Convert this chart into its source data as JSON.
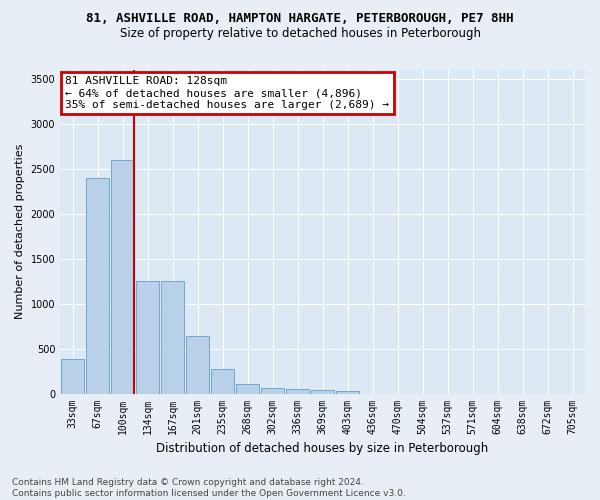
{
  "title_line1": "81, ASHVILLE ROAD, HAMPTON HARGATE, PETERBOROUGH, PE7 8HH",
  "title_line2": "Size of property relative to detached houses in Peterborough",
  "xlabel": "Distribution of detached houses by size in Peterborough",
  "ylabel": "Number of detached properties",
  "categories": [
    "33sqm",
    "67sqm",
    "100sqm",
    "134sqm",
    "167sqm",
    "201sqm",
    "235sqm",
    "268sqm",
    "302sqm",
    "336sqm",
    "369sqm",
    "403sqm",
    "436sqm",
    "470sqm",
    "504sqm",
    "537sqm",
    "571sqm",
    "604sqm",
    "638sqm",
    "672sqm",
    "705sqm"
  ],
  "values": [
    390,
    2400,
    2600,
    1250,
    1250,
    640,
    270,
    110,
    60,
    55,
    35,
    25,
    0,
    0,
    0,
    0,
    0,
    0,
    0,
    0,
    0
  ],
  "bar_color": "#b8d0e8",
  "bar_edge_color": "#6fa8d0",
  "vline_x_idx": 2,
  "annotation_title": "81 ASHVILLE ROAD: 128sqm",
  "annotation_line2": "← 64% of detached houses are smaller (4,896)",
  "annotation_line3": "35% of semi-detached houses are larger (2,689) →",
  "annotation_box_color": "#ffffff",
  "annotation_box_edge": "#cc0000",
  "vline_color": "#cc0000",
  "ylim": [
    0,
    3600
  ],
  "yticks": [
    0,
    500,
    1000,
    1500,
    2000,
    2500,
    3000,
    3500
  ],
  "footer_line1": "Contains HM Land Registry data © Crown copyright and database right 2024.",
  "footer_line2": "Contains public sector information licensed under the Open Government Licence v3.0.",
  "bg_color": "#e8eef5",
  "plot_bg_color": "#dce8f4",
  "title_fontsize": 9,
  "subtitle_fontsize": 8.5,
  "axis_label_fontsize": 8,
  "tick_fontsize": 7,
  "annotation_fontsize": 8,
  "footer_fontsize": 6.5
}
